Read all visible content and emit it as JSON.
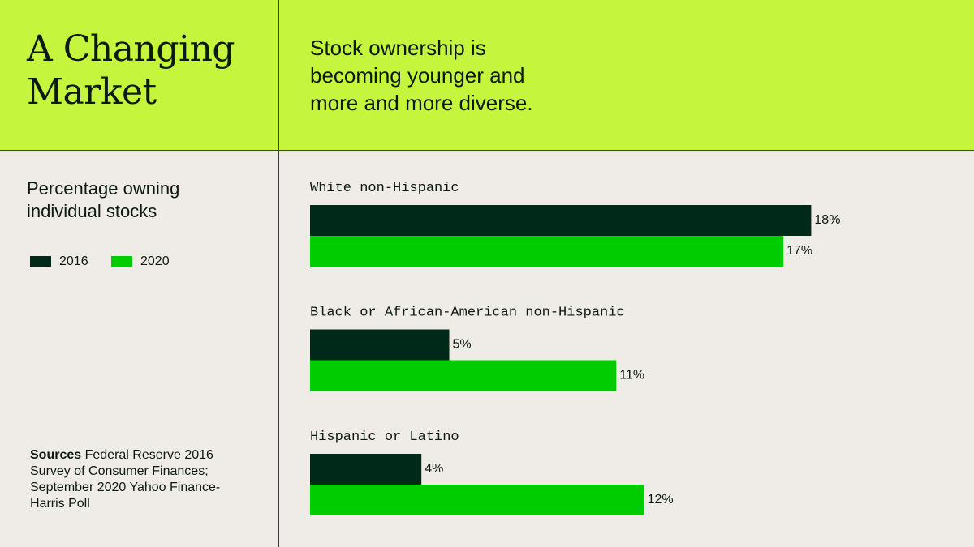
{
  "chart_data": {
    "type": "bar",
    "orientation": "horizontal",
    "title": "A Changing Market",
    "subtitle": "Stock ownership is becoming younger and more and more diverse.",
    "axis_label": "Percentage owning individual stocks",
    "categories": [
      "White non-Hispanic",
      "Black or African-American non-Hispanic",
      "Hispanic or Latino"
    ],
    "series": [
      {
        "name": "2016",
        "color": "#01291a",
        "values": [
          18,
          5,
          4
        ],
        "value_labels": [
          "18%",
          "5%",
          "4%"
        ]
      },
      {
        "name": "2020",
        "color": "#00cc00",
        "values": [
          17,
          11,
          12
        ],
        "value_labels": [
          "17%",
          "11%",
          "12%"
        ]
      }
    ],
    "sources": {
      "label": "Sources",
      "text": "Federal Reserve 2016 Survey of Consumer Finances; September 2020 Yahoo Finance-Harris Poll"
    }
  }
}
